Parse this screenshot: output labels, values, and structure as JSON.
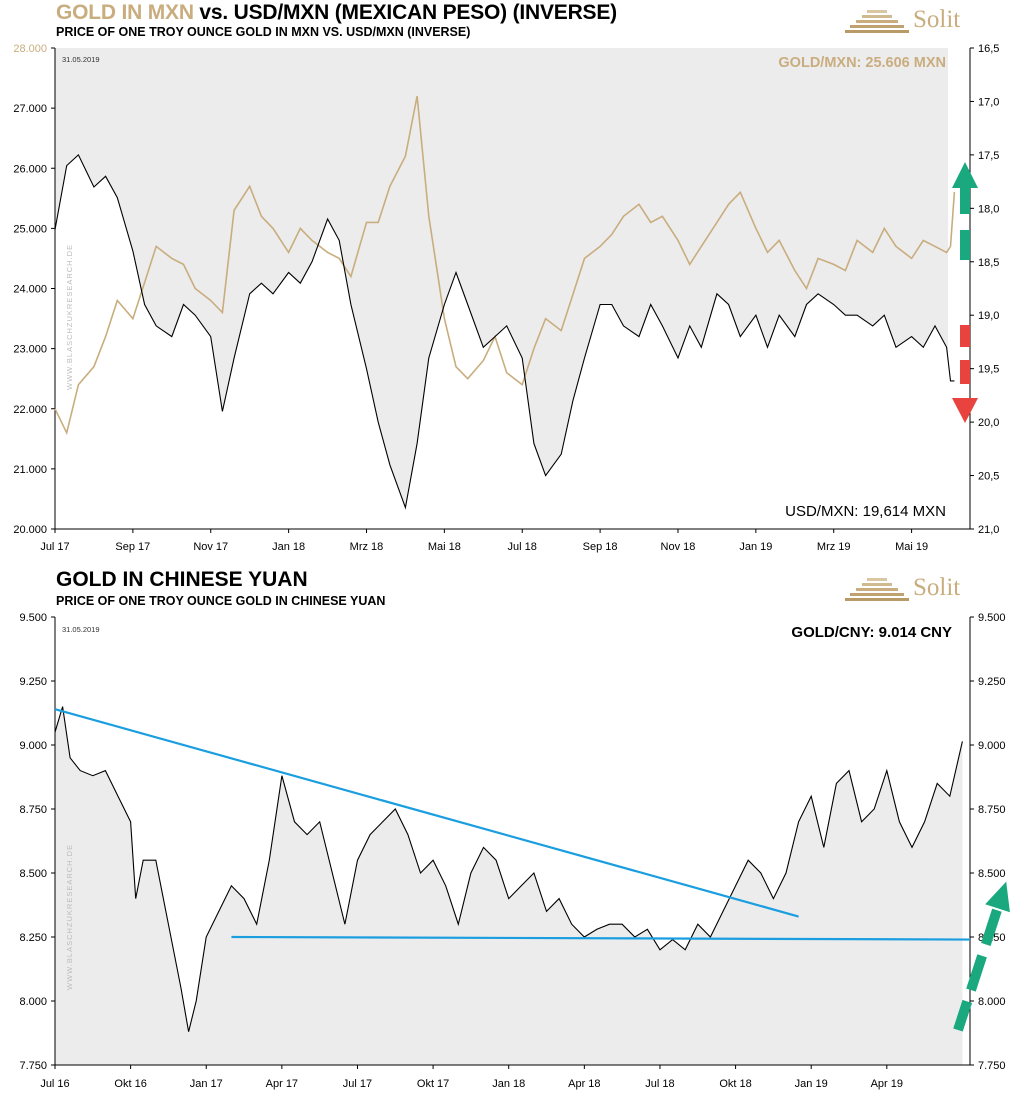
{
  "chart1": {
    "title_part1": "GOLD IN MXN",
    "title_part2": " vs. USD/MXN (MEXICAN PESO) (INVERSE)",
    "subtitle": "PRICE OF ONE TROY OUNCE GOLD IN MXN VS. USD/MXN (INVERSE)",
    "date_stamp": "31.05.2019",
    "watermark": "WWW.BLASCHZUKRESEARCH.DE",
    "gold_label": "GOLD/MXN: 25.606 MXN",
    "usd_label": "USD/MXN: 19,614 MXN",
    "logo_text": "Solit"
  },
  "chart2": {
    "title": "GOLD IN CHINESE YUAN",
    "subtitle": "PRICE OF ONE TROY OUNCE GOLD IN CHINESE YUAN",
    "date_stamp": "31.05.2019",
    "watermark": "WWW.BLASCHZUKRESEARCH.DE",
    "value_label": "GOLD/CNY: 9.014 CNY",
    "logo_text": "Solit"
  },
  "colors": {
    "gold": "#c9ad7e",
    "usd_line": "#000000",
    "shade": "#ececec",
    "trendline": "#1a9ee0",
    "arrow_up": "#1aa87f",
    "arrow_down": "#e8433f"
  },
  "chart_data": [
    {
      "type": "line",
      "x_tick_labels": [
        "Jul 17",
        "Sep 17",
        "Nov 17",
        "Jan 18",
        "Mrz 18",
        "Mai 18",
        "Jul 18",
        "Sep 18",
        "Nov 18",
        "Jan 19",
        "Mrz 19",
        "Mai 19"
      ],
      "y_left_tick_labels": [
        "20.000",
        "21.000",
        "22.000",
        "23.000",
        "24.000",
        "25.000",
        "26.000",
        "27.000",
        "28.000"
      ],
      "y_right_tick_labels": [
        "21,0",
        "20,5",
        "20,0",
        "19,5",
        "19,0",
        "18,5",
        "18,0",
        "17,5",
        "17,0",
        "16,5"
      ],
      "ylim_left": [
        20000,
        28000
      ],
      "ylim_right_inverted": [
        21.0,
        16.5
      ],
      "x_range_months": [
        0,
        23.5
      ],
      "series": [
        {
          "name": "GOLD/MXN",
          "axis": "left",
          "color": "#c9ad7e",
          "x_months": [
            0,
            0.3,
            0.6,
            1,
            1.3,
            1.6,
            2,
            2.3,
            2.6,
            3,
            3.3,
            3.6,
            4,
            4.3,
            4.6,
            5,
            5.3,
            5.6,
            6,
            6.3,
            6.6,
            7,
            7.3,
            7.6,
            8,
            8.3,
            8.6,
            9,
            9.3,
            9.6,
            10,
            10.3,
            10.6,
            11,
            11.3,
            11.6,
            12,
            12.3,
            12.6,
            13,
            13.3,
            13.6,
            14,
            14.3,
            14.6,
            15,
            15.3,
            15.6,
            16,
            16.3,
            16.6,
            17,
            17.3,
            17.6,
            18,
            18.3,
            18.6,
            19,
            19.3,
            19.6,
            20,
            20.3,
            20.6,
            21,
            21.3,
            21.6,
            22,
            22.3,
            22.6,
            22.9,
            23,
            23.1
          ],
          "values": [
            22000,
            21600,
            22400,
            22700,
            23200,
            23800,
            23500,
            24100,
            24700,
            24500,
            24400,
            24000,
            23800,
            23600,
            25300,
            25700,
            25200,
            25000,
            24600,
            25000,
            24800,
            24600,
            24500,
            24200,
            25100,
            25100,
            25700,
            26200,
            27200,
            25200,
            23500,
            22700,
            22500,
            22800,
            23200,
            22600,
            22400,
            23000,
            23500,
            23300,
            23900,
            24500,
            24700,
            24900,
            25200,
            25400,
            25100,
            25200,
            24800,
            24400,
            24700,
            25100,
            25400,
            25600,
            25000,
            24600,
            24800,
            24300,
            24000,
            24500,
            24400,
            24300,
            24800,
            24600,
            25000,
            24700,
            24500,
            24800,
            24700,
            24600,
            24700,
            25606
          ]
        },
        {
          "name": "USD/MXN",
          "axis": "right",
          "color": "#000000",
          "x_months": [
            0,
            0.3,
            0.6,
            1,
            1.3,
            1.6,
            2,
            2.3,
            2.6,
            3,
            3.3,
            3.6,
            4,
            4.3,
            4.6,
            5,
            5.3,
            5.6,
            6,
            6.3,
            6.6,
            7,
            7.3,
            7.6,
            8,
            8.3,
            8.6,
            9,
            9.3,
            9.6,
            10,
            10.3,
            10.6,
            11,
            11.3,
            11.6,
            12,
            12.3,
            12.6,
            13,
            13.3,
            13.6,
            14,
            14.3,
            14.6,
            15,
            15.3,
            15.6,
            16,
            16.3,
            16.6,
            17,
            17.3,
            17.6,
            18,
            18.3,
            18.6,
            19,
            19.3,
            19.6,
            20,
            20.3,
            20.6,
            21,
            21.3,
            21.6,
            22,
            22.3,
            22.6,
            22.9,
            23,
            23.1
          ],
          "values": [
            18.2,
            17.6,
            17.5,
            17.8,
            17.7,
            17.9,
            18.4,
            18.9,
            19.1,
            19.2,
            18.9,
            19.0,
            19.2,
            19.9,
            19.4,
            18.8,
            18.7,
            18.8,
            18.6,
            18.7,
            18.5,
            18.1,
            18.3,
            18.9,
            19.5,
            20.0,
            20.4,
            20.8,
            20.2,
            19.4,
            18.9,
            18.6,
            18.9,
            19.3,
            19.2,
            19.1,
            19.4,
            20.2,
            20.5,
            20.3,
            19.8,
            19.4,
            18.9,
            18.9,
            19.1,
            19.2,
            18.9,
            19.1,
            19.4,
            19.1,
            19.3,
            18.8,
            18.9,
            19.2,
            19.0,
            19.3,
            19.0,
            19.2,
            18.9,
            18.8,
            18.9,
            19.0,
            19.0,
            19.1,
            19.0,
            19.3,
            19.2,
            19.3,
            19.1,
            19.3,
            19.614,
            19.614
          ]
        }
      ]
    },
    {
      "type": "line",
      "x_tick_labels": [
        "Jul 16",
        "Okt 16",
        "Jan 17",
        "Apr 17",
        "Jul 17",
        "Okt 17",
        "Jan 18",
        "Apr 18",
        "Jul 18",
        "Okt 18",
        "Jan 19",
        "Apr 19"
      ],
      "y_tick_labels": [
        "7.750",
        "8.000",
        "8.250",
        "8.500",
        "8.750",
        "9.000",
        "9.250",
        "9.500"
      ],
      "ylim": [
        7750,
        9500
      ],
      "x_range_months": [
        0,
        36.3
      ],
      "series": [
        {
          "name": "GOLD/CNY",
          "color": "#000000",
          "x_months": [
            0,
            0.3,
            0.6,
            1,
            1.5,
            2,
            2.5,
            3,
            3.2,
            3.5,
            4,
            4.5,
            5,
            5.3,
            5.6,
            6,
            6.5,
            7,
            7.5,
            8,
            8.5,
            9,
            9.5,
            10,
            10.5,
            11,
            11.5,
            12,
            12.5,
            13,
            13.5,
            14,
            14.5,
            15,
            15.5,
            16,
            16.5,
            17,
            17.5,
            18,
            18.5,
            19,
            19.5,
            20,
            20.5,
            21,
            21.5,
            22,
            22.5,
            23,
            23.5,
            24,
            24.5,
            25,
            25.5,
            26,
            26.5,
            27,
            27.5,
            28,
            28.5,
            29,
            29.5,
            30,
            30.5,
            31,
            31.5,
            32,
            32.5,
            33,
            33.5,
            34,
            34.5,
            35,
            35.5,
            36
          ],
          "values": [
            9050,
            9150,
            8950,
            8900,
            8880,
            8900,
            8800,
            8700,
            8400,
            8550,
            8550,
            8300,
            8050,
            7880,
            8000,
            8250,
            8350,
            8450,
            8400,
            8300,
            8550,
            8880,
            8700,
            8650,
            8700,
            8500,
            8300,
            8550,
            8650,
            8700,
            8750,
            8650,
            8500,
            8550,
            8450,
            8300,
            8500,
            8600,
            8550,
            8400,
            8450,
            8500,
            8350,
            8400,
            8300,
            8250,
            8280,
            8300,
            8300,
            8250,
            8280,
            8200,
            8240,
            8200,
            8300,
            8250,
            8350,
            8450,
            8550,
            8500,
            8400,
            8500,
            8700,
            8800,
            8600,
            8850,
            8900,
            8700,
            8750,
            8900,
            8700,
            8600,
            8700,
            8850,
            8800,
            9014
          ]
        }
      ],
      "trendlines": [
        {
          "label": "resistance",
          "x_months": [
            0,
            29.5
          ],
          "values": [
            9140,
            8330
          ]
        },
        {
          "label": "support",
          "x_months": [
            7,
            36.3
          ],
          "values": [
            8250,
            8240
          ]
        }
      ]
    }
  ]
}
